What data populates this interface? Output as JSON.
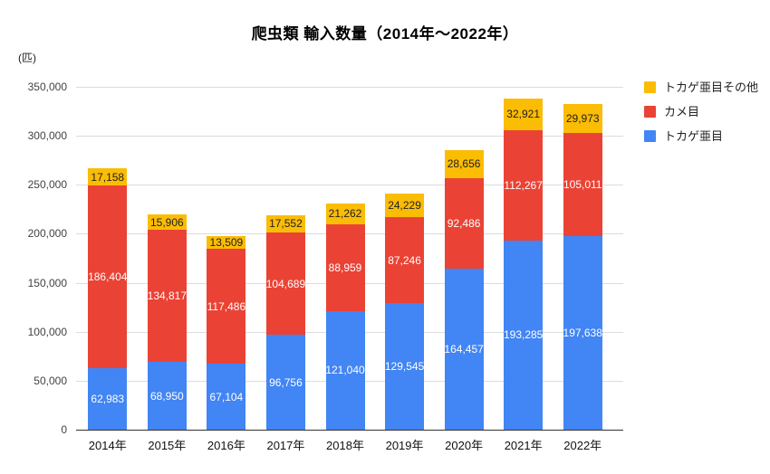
{
  "chart_data": {
    "type": "bar",
    "stacked": true,
    "title": "爬虫類 輸入数量（2014年～2022年）",
    "unit_label": "(匹)",
    "categories": [
      "2014年",
      "2015年",
      "2016年",
      "2017年",
      "2018年",
      "2019年",
      "2020年",
      "2021年",
      "2022年"
    ],
    "series": [
      {
        "name": "トカゲ亜目",
        "color": "#4285F4",
        "label_color": "#FFFFFF",
        "values": [
          62983,
          68950,
          67104,
          96756,
          121040,
          129545,
          164457,
          193285,
          197638
        ]
      },
      {
        "name": "カメ目",
        "color": "#EA4335",
        "label_color": "#FFFFFF",
        "values": [
          186404,
          134817,
          117486,
          104689,
          88959,
          87246,
          92486,
          112267,
          105011
        ]
      },
      {
        "name": "トカゲ亜目その他",
        "color": "#FBBC04",
        "label_color": "#202124",
        "values": [
          17158,
          15906,
          13509,
          17552,
          21262,
          24229,
          28656,
          32921,
          29973
        ]
      }
    ],
    "y_ticks": [
      0,
      50000,
      100000,
      150000,
      200000,
      250000,
      300000,
      350000
    ],
    "ylim": [
      0,
      350000
    ],
    "grid": true,
    "legend": {
      "position": "right",
      "items": [
        "トカゲ亜目その他",
        "カメ目",
        "トカゲ亜目"
      ]
    }
  }
}
